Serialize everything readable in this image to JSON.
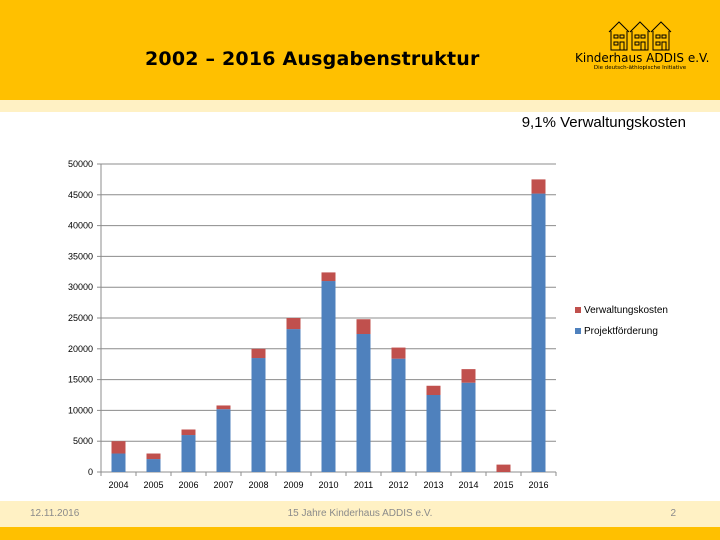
{
  "header": {
    "title": "2002 – 2016 Ausgabenstruktur",
    "logo_name": "Kinderhaus ADDIS e.V.",
    "logo_tagline": "Die deutsch-äthiopische Initiative"
  },
  "subtitle": "9,1% Verwaltungskosten",
  "footer": {
    "date": "12.11.2016",
    "center": "15 Jahre Kinderhaus ADDIS e.V.",
    "page": "2"
  },
  "colors": {
    "header_band": "#FFC000",
    "light_band": "#FFF1C4",
    "projekt": "#4F81BD",
    "verwaltung": "#C0504D"
  },
  "chart_data": {
    "type": "bar",
    "stacked": true,
    "title": "",
    "xlabel": "",
    "ylabel": "",
    "ylim": [
      0,
      50000
    ],
    "yticks": [
      0,
      5000,
      10000,
      15000,
      20000,
      25000,
      30000,
      35000,
      40000,
      45000,
      50000
    ],
    "grid": true,
    "legend_position": "right",
    "categories": [
      "2004",
      "2005",
      "2006",
      "2007",
      "2008",
      "2009",
      "2010",
      "2011",
      "2012",
      "2013",
      "2014",
      "2015",
      "2016"
    ],
    "series": [
      {
        "name": "Projektförderung",
        "color": "#4F81BD",
        "values": [
          3000,
          2100,
          6000,
          10200,
          18500,
          23200,
          31000,
          22400,
          18400,
          12500,
          14500,
          0,
          45200
        ]
      },
      {
        "name": "Verwaltungskosten",
        "color": "#C0504D",
        "values": [
          2000,
          900,
          900,
          600,
          1500,
          1800,
          1400,
          2400,
          1800,
          1500,
          2200,
          1200,
          2300
        ]
      }
    ],
    "legend": [
      "Verwaltungskosten",
      "Projektförderung"
    ]
  }
}
